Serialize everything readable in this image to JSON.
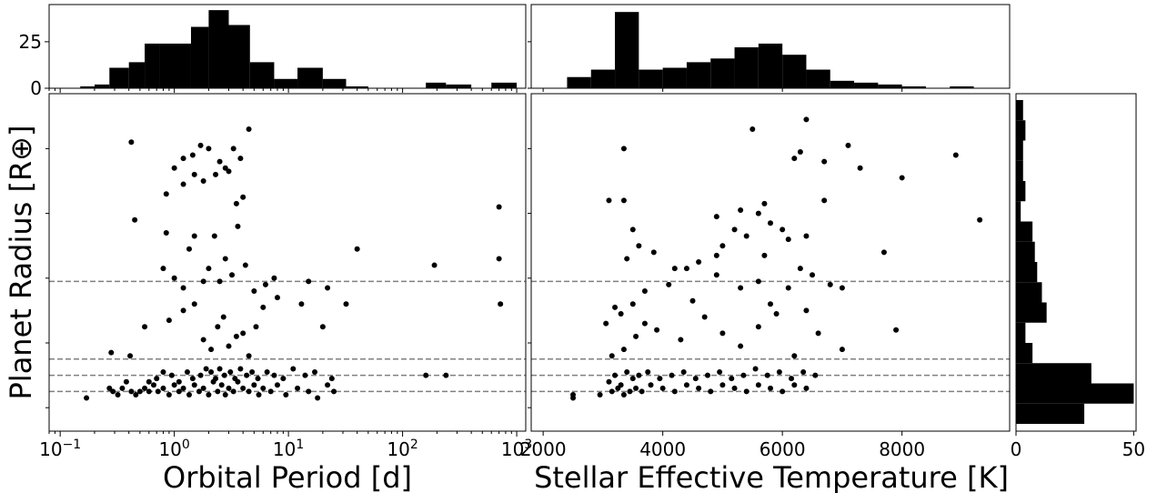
{
  "chart_data": [
    {
      "type": "histogram",
      "panel": "period-histogram",
      "x_scale": "log",
      "xlim": [
        0.08,
        1200
      ],
      "ylim": [
        0,
        45
      ],
      "yticks": [
        0,
        25
      ],
      "bin_edges": [
        0.15,
        0.2,
        0.27,
        0.4,
        0.55,
        0.75,
        1.4,
        2.0,
        3.0,
        4.6,
        7.5,
        12,
        20,
        32,
        50,
        80,
        160,
        240,
        400,
        600,
        1000
      ],
      "counts": [
        1,
        2,
        11,
        14,
        24,
        24,
        33,
        42,
        34,
        14,
        5,
        11,
        5,
        1,
        0,
        0,
        3,
        2,
        0,
        3
      ]
    },
    {
      "type": "histogram",
      "panel": "teff-histogram",
      "xlim": [
        1800,
        9800
      ],
      "ylim": [
        0,
        45
      ],
      "bin_edges": [
        2400,
        2800,
        3200,
        3600,
        4000,
        4400,
        4800,
        5200,
        5600,
        6000,
        6400,
        6800,
        7200,
        7600,
        8000,
        8400,
        8800,
        9200
      ],
      "counts": [
        6,
        10,
        41,
        10,
        11,
        14,
        16,
        22,
        24,
        18,
        10,
        4,
        3,
        2,
        1,
        0,
        1
      ]
    },
    {
      "type": "histogram",
      "panel": "radius-histogram",
      "orientation": "horizontal",
      "xlim": [
        0,
        51
      ],
      "xticks": [
        0,
        50
      ],
      "xticklabels": [
        "0",
        "50"
      ],
      "bin_axis_range": [
        0,
        1
      ],
      "bin_counts_bottom_to_top": [
        29,
        50,
        32,
        7,
        4,
        13,
        11,
        9,
        8,
        7,
        2,
        4,
        3,
        3,
        4,
        3
      ]
    },
    {
      "type": "scatter",
      "panel": "period-radius",
      "x_scale": "log",
      "xlim": [
        0.08,
        1200
      ],
      "ylim": [
        0,
        1
      ],
      "xticks": [
        0.1,
        1,
        10,
        100,
        1000
      ],
      "xtick_bases": [
        "10",
        "10",
        "10",
        "10",
        "10"
      ],
      "xtick_exponents": [
        "−1",
        "0",
        "1",
        "2",
        "3"
      ],
      "xlabel": "Orbital Period [d]",
      "ylabel": "Planet Radius [R⊕]",
      "hlines": [
        0.44,
        0.2,
        0.15,
        0.1
      ],
      "points": [
        [
          0.17,
          0.08
        ],
        [
          0.27,
          0.11
        ],
        [
          0.29,
          0.1
        ],
        [
          0.32,
          0.09
        ],
        [
          0.35,
          0.11
        ],
        [
          0.38,
          0.13
        ],
        [
          0.42,
          0.1
        ],
        [
          0.46,
          0.09
        ],
        [
          0.5,
          0.1
        ],
        [
          0.55,
          0.11
        ],
        [
          0.6,
          0.1
        ],
        [
          0.66,
          0.12
        ],
        [
          0.72,
          0.1
        ],
        [
          0.8,
          0.11
        ],
        [
          0.9,
          0.09
        ],
        [
          1.0,
          0.12
        ],
        [
          1.1,
          0.1
        ],
        [
          1.2,
          0.11
        ],
        [
          1.35,
          0.09
        ],
        [
          1.5,
          0.12
        ],
        [
          1.65,
          0.1
        ],
        [
          1.8,
          0.11
        ],
        [
          2.0,
          0.09
        ],
        [
          2.2,
          0.13
        ],
        [
          2.4,
          0.1
        ],
        [
          2.6,
          0.12
        ],
        [
          2.8,
          0.09
        ],
        [
          3.0,
          0.11
        ],
        [
          3.3,
          0.1
        ],
        [
          3.6,
          0.13
        ],
        [
          4.0,
          0.11
        ],
        [
          4.5,
          0.1
        ],
        [
          5.0,
          0.12
        ],
        [
          5.5,
          0.09
        ],
        [
          6.0,
          0.11
        ],
        [
          7.0,
          0.1
        ],
        [
          8.0,
          0.12
        ],
        [
          9.5,
          0.09
        ],
        [
          12,
          0.11
        ],
        [
          15,
          0.1
        ],
        [
          18,
          0.08
        ],
        [
          22,
          0.12
        ],
        [
          25,
          0.1
        ],
        [
          0.28,
          0.22
        ],
        [
          0.41,
          0.21
        ],
        [
          0.6,
          0.13
        ],
        [
          0.7,
          0.14
        ],
        [
          0.8,
          0.16
        ],
        [
          0.95,
          0.15
        ],
        [
          1.1,
          0.13
        ],
        [
          1.3,
          0.16
        ],
        [
          1.45,
          0.14
        ],
        [
          1.7,
          0.15
        ],
        [
          1.9,
          0.17
        ],
        [
          2.1,
          0.16
        ],
        [
          2.3,
          0.14
        ],
        [
          2.5,
          0.17
        ],
        [
          2.75,
          0.15
        ],
        [
          3.1,
          0.16
        ],
        [
          3.4,
          0.14
        ],
        [
          3.8,
          0.17
        ],
        [
          4.3,
          0.15
        ],
        [
          4.8,
          0.16
        ],
        [
          5.4,
          0.14
        ],
        [
          6.5,
          0.16
        ],
        [
          7.5,
          0.15
        ],
        [
          9.0,
          0.14
        ],
        [
          11,
          0.17
        ],
        [
          14,
          0.15
        ],
        [
          17,
          0.16
        ],
        [
          24,
          0.14
        ],
        [
          160,
          0.15
        ],
        [
          240,
          0.15
        ],
        [
          0.55,
          0.3
        ],
        [
          0.9,
          0.32
        ],
        [
          1.2,
          0.35
        ],
        [
          1.5,
          0.37
        ],
        [
          1.8,
          0.26
        ],
        [
          2.1,
          0.23
        ],
        [
          2.4,
          0.3
        ],
        [
          2.7,
          0.33
        ],
        [
          3.0,
          0.24
        ],
        [
          3.5,
          0.27
        ],
        [
          4.0,
          0.28
        ],
        [
          4.5,
          0.21
        ],
        [
          5.2,
          0.3
        ],
        [
          6.0,
          0.36
        ],
        [
          8.0,
          0.39
        ],
        [
          13,
          0.37
        ],
        [
          20,
          0.3
        ],
        [
          0.45,
          0.63
        ],
        [
          0.8,
          0.48
        ],
        [
          1.0,
          0.45
        ],
        [
          1.2,
          0.42
        ],
        [
          1.35,
          0.54
        ],
        [
          1.5,
          0.58
        ],
        [
          1.8,
          0.44
        ],
        [
          2.0,
          0.48
        ],
        [
          2.25,
          0.58
        ],
        [
          2.5,
          0.44
        ],
        [
          2.8,
          0.51
        ],
        [
          3.2,
          0.46
        ],
        [
          3.6,
          0.61
        ],
        [
          4.2,
          0.49
        ],
        [
          5.0,
          0.41
        ],
        [
          6.3,
          0.43
        ],
        [
          7.5,
          0.45
        ],
        [
          15,
          0.44
        ],
        [
          22,
          0.42
        ],
        [
          32,
          0.37
        ],
        [
          0.85,
          0.59
        ],
        [
          1.2,
          0.74
        ],
        [
          1.5,
          0.77
        ],
        [
          1.8,
          0.75
        ],
        [
          2.3,
          0.77
        ],
        [
          2.8,
          0.79
        ],
        [
          3.5,
          0.68
        ],
        [
          4.0,
          0.7
        ],
        [
          0.42,
          0.87
        ],
        [
          0.85,
          0.71
        ],
        [
          1.0,
          0.79
        ],
        [
          1.2,
          0.82
        ],
        [
          1.45,
          0.83
        ],
        [
          1.7,
          0.86
        ],
        [
          2.0,
          0.85
        ],
        [
          2.5,
          0.81
        ],
        [
          3.0,
          0.78
        ],
        [
          3.3,
          0.85
        ],
        [
          3.8,
          0.82
        ],
        [
          4.5,
          0.91
        ],
        [
          40,
          0.54
        ],
        [
          190,
          0.49
        ],
        [
          700,
          0.51
        ],
        [
          700,
          0.67
        ],
        [
          720,
          0.37
        ]
      ]
    },
    {
      "type": "scatter",
      "panel": "teff-radius",
      "xlim": [
        1800,
        9800
      ],
      "ylim": [
        0,
        1
      ],
      "xticks": [
        2000,
        4000,
        6000,
        8000
      ],
      "xticklabels": [
        "2000",
        "4000",
        "6000",
        "8000"
      ],
      "xlabel": "Stellar Effective Temperature [K]",
      "hlines": [
        0.44,
        0.2,
        0.15,
        0.1
      ],
      "points": [
        [
          2500,
          0.08
        ],
        [
          2500,
          0.09
        ],
        [
          2950,
          0.09
        ],
        [
          3150,
          0.1
        ],
        [
          3250,
          0.11
        ],
        [
          3350,
          0.09
        ],
        [
          3450,
          0.1
        ],
        [
          3550,
          0.11
        ],
        [
          3650,
          0.1
        ],
        [
          3800,
          0.12
        ],
        [
          4000,
          0.11
        ],
        [
          4200,
          0.1
        ],
        [
          4400,
          0.12
        ],
        [
          4600,
          0.11
        ],
        [
          4800,
          0.1
        ],
        [
          5000,
          0.12
        ],
        [
          5200,
          0.11
        ],
        [
          5400,
          0.1
        ],
        [
          5600,
          0.12
        ],
        [
          5800,
          0.11
        ],
        [
          6000,
          0.1
        ],
        [
          6200,
          0.12
        ],
        [
          6400,
          0.11
        ],
        [
          3100,
          0.13
        ],
        [
          3300,
          0.12
        ],
        [
          3500,
          0.14
        ],
        [
          3200,
          0.15
        ],
        [
          3400,
          0.16
        ],
        [
          3600,
          0.15
        ],
        [
          3750,
          0.16
        ],
        [
          3950,
          0.14
        ],
        [
          4150,
          0.15
        ],
        [
          4350,
          0.16
        ],
        [
          4550,
          0.14
        ],
        [
          4750,
          0.15
        ],
        [
          4950,
          0.16
        ],
        [
          5150,
          0.14
        ],
        [
          5350,
          0.15
        ],
        [
          5550,
          0.17
        ],
        [
          5750,
          0.15
        ],
        [
          5950,
          0.16
        ],
        [
          6150,
          0.14
        ],
        [
          6350,
          0.16
        ],
        [
          6550,
          0.15
        ],
        [
          3150,
          0.21
        ],
        [
          3350,
          0.23
        ],
        [
          3550,
          0.27
        ],
        [
          3700,
          0.31
        ],
        [
          3900,
          0.29
        ],
        [
          4300,
          0.26
        ],
        [
          4700,
          0.33
        ],
        [
          5000,
          0.28
        ],
        [
          5300,
          0.24
        ],
        [
          5600,
          0.3
        ],
        [
          5900,
          0.34
        ],
        [
          6200,
          0.21
        ],
        [
          6600,
          0.28
        ],
        [
          7000,
          0.23
        ],
        [
          3050,
          0.31
        ],
        [
          3300,
          0.34
        ],
        [
          3500,
          0.37
        ],
        [
          3700,
          0.41
        ],
        [
          4100,
          0.43
        ],
        [
          4500,
          0.38
        ],
        [
          4900,
          0.46
        ],
        [
          5300,
          0.42
        ],
        [
          5600,
          0.44
        ],
        [
          5800,
          0.37
        ],
        [
          6100,
          0.42
        ],
        [
          6400,
          0.35
        ],
        [
          6800,
          0.43
        ],
        [
          7900,
          0.29
        ],
        [
          3200,
          0.36
        ],
        [
          3400,
          0.51
        ],
        [
          3600,
          0.55
        ],
        [
          3850,
          0.53
        ],
        [
          4200,
          0.48
        ],
        [
          4600,
          0.5
        ],
        [
          5000,
          0.55
        ],
        [
          5400,
          0.58
        ],
        [
          5700,
          0.52
        ],
        [
          6000,
          0.6
        ],
        [
          6300,
          0.48
        ],
        [
          6500,
          0.46
        ],
        [
          7000,
          0.42
        ],
        [
          7700,
          0.53
        ],
        [
          3100,
          0.69
        ],
        [
          3350,
          0.69
        ],
        [
          3500,
          0.6
        ],
        [
          4400,
          0.48
        ],
        [
          4900,
          0.52
        ],
        [
          5200,
          0.6
        ],
        [
          5600,
          0.65
        ],
        [
          5800,
          0.62
        ],
        [
          6100,
          0.57
        ],
        [
          6400,
          0.58
        ],
        [
          6700,
          0.69
        ],
        [
          8000,
          0.76
        ],
        [
          3350,
          0.85
        ],
        [
          5500,
          0.91
        ],
        [
          6200,
          0.82
        ],
        [
          6300,
          0.84
        ],
        [
          6400,
          0.94
        ],
        [
          6700,
          0.81
        ],
        [
          7100,
          0.86
        ],
        [
          7300,
          0.79
        ],
        [
          8900,
          0.83
        ],
        [
          9300,
          0.63
        ],
        [
          4900,
          0.64
        ],
        [
          5300,
          0.66
        ],
        [
          5700,
          0.68
        ]
      ]
    }
  ],
  "colors": {
    "marks": "#000000",
    "hline": "#808080",
    "frame": "#000000"
  }
}
